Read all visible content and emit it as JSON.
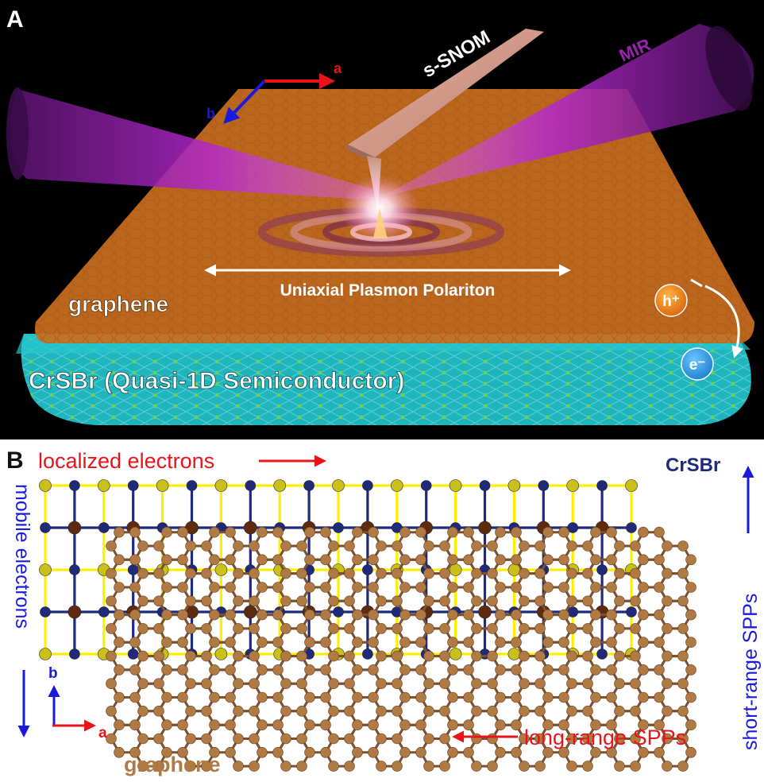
{
  "panel_a": {
    "panel_label": "A",
    "axis_a": "a",
    "axis_b": "b",
    "probe_label": "s-SNOM",
    "beam_label": "MIR",
    "polariton_label": "Uniaxial Plasmon Polariton",
    "top_layer_label": "graphene",
    "bottom_layer_label": "CrSBr (Quasi-1D Semiconductor)",
    "hole_symbol": "h⁺",
    "electron_symbol": "e⁻"
  },
  "panel_b": {
    "panel_label": "B",
    "localized_label": "localized electrons",
    "mobile_label": "mobile electrons",
    "crsbr_label": "CrSBr",
    "graphene_label": "graphene",
    "short_range_label": "short-range SPPs",
    "long_range_label": "long-range SPPs",
    "axis_a": "a",
    "axis_b": "b"
  },
  "colors": {
    "red": "#e8141a",
    "blue": "#1a1adc",
    "crsbr_navy": "#1f2a7a",
    "graphene_brown": "#b07a45",
    "beam_magenta": "#9c21b0",
    "graphene_orange": "#e08a2a",
    "crsbr_cyan": "#1fb5bd",
    "atom_yellow": "#c9c01a"
  }
}
